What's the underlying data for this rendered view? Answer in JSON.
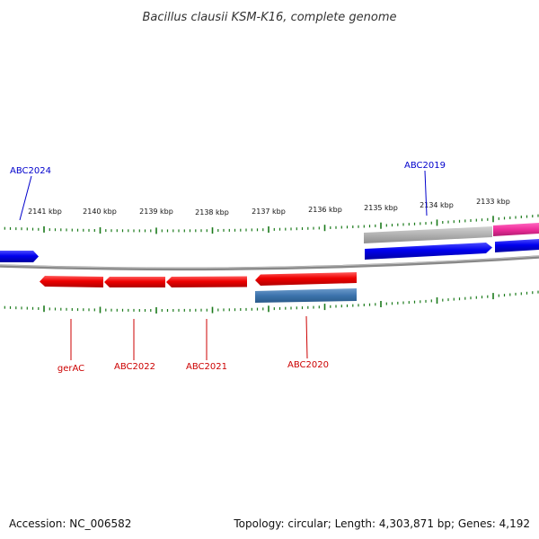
{
  "title": "Bacillus clausii KSM-K16, complete genome",
  "scale_labels": [
    "2141 kbp",
    "2140 kbp",
    "2139 kbp",
    "2138 kbp",
    "2137 kbp",
    "2136 kbp",
    "2135 kbp",
    "2134 kbp",
    "2133 kbp"
  ],
  "genes": {
    "abc2024": "ABC2024",
    "abc2019": "ABC2019",
    "gerac": "gerAC",
    "abc2022": "ABC2022",
    "abc2021": "ABC2021",
    "abc2020": "ABC2020"
  },
  "footer": {
    "accession": "Accession: NC_006582",
    "summary": "Topology: circular; Length: 4,303,871 bp; Genes: 4,192"
  },
  "colors": {
    "forward_label": "#0000cc",
    "reverse_label": "#cc0000",
    "tick": "#1a7a1a",
    "backbone": "#888888",
    "forward_gene": "#0000ee",
    "reverse_gene": "#ee0000",
    "rna_gene": "#3c74ad",
    "pseudo_gene": "#b0b0b0",
    "other_gene": "#ee2d9a"
  }
}
